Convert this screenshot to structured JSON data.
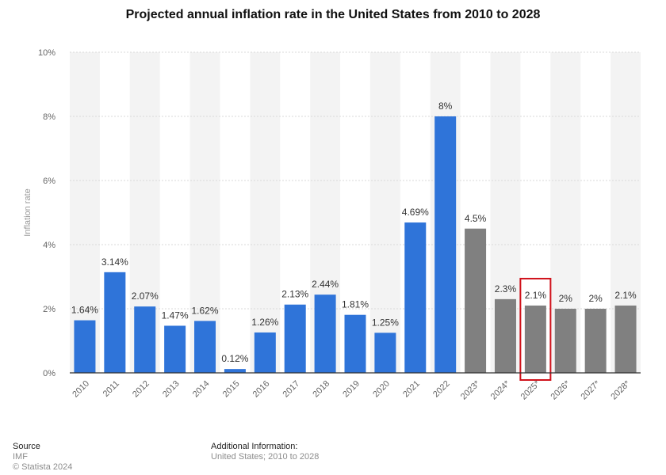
{
  "chart_data": {
    "type": "bar",
    "title": "Projected annual inflation rate in the United States from 2010 to 2028",
    "ylabel": "Inflation rate",
    "xlabel": "",
    "ylim": [
      0,
      10
    ],
    "yticks": [
      "0%",
      "2%",
      "4%",
      "6%",
      "8%",
      "10%"
    ],
    "categories": [
      "2010",
      "2011",
      "2012",
      "2013",
      "2014",
      "2015",
      "2016",
      "2017",
      "2018",
      "2019",
      "2020",
      "2021",
      "2022",
      "2023*",
      "2024*",
      "2025*",
      "2026*",
      "2027*",
      "2028*"
    ],
    "values": [
      1.64,
      3.14,
      2.07,
      1.47,
      1.62,
      0.12,
      1.26,
      2.13,
      2.44,
      1.81,
      1.25,
      4.69,
      8,
      4.5,
      2.3,
      2.1,
      2,
      2,
      2.1
    ],
    "value_labels": [
      "1.64%",
      "3.14%",
      "2.07%",
      "1.47%",
      "1.62%",
      "0.12%",
      "1.26%",
      "2.13%",
      "2.44%",
      "1.81%",
      "1.25%",
      "4.69%",
      "8%",
      "4.5%",
      "2.3%",
      "2.1%",
      "2%",
      "2%",
      "2.1%"
    ],
    "projected_from_index": 13,
    "highlighted_category": "2025*",
    "grid": true,
    "legend": "none"
  },
  "colors": {
    "actual": "#2f74d9",
    "projected": "#808080",
    "highlight_box": "#d0121b",
    "band": "#f3f3f3",
    "grid": "#d9d9d9",
    "axis": "#333333",
    "tick_text": "#666666",
    "label_text": "#333333"
  },
  "footer": {
    "source_heading": "Source",
    "source_lines": [
      "IMF",
      "© Statista 2024"
    ],
    "info_heading": "Additional Information:",
    "info_text": "United States; 2010 to 2028"
  }
}
